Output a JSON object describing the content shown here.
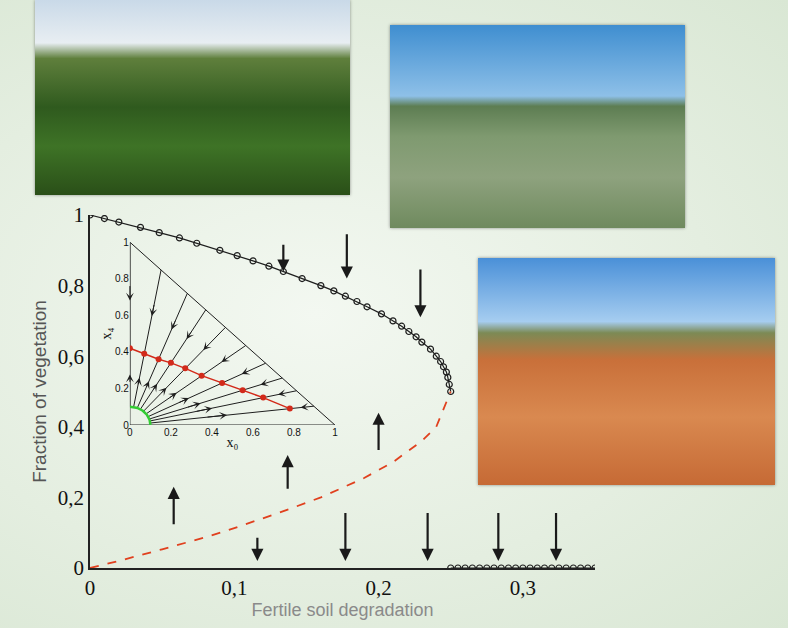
{
  "chart_data": [
    {
      "type": "line",
      "x_label": "Fertile soil degradation",
      "y_label": "Fraction of vegetation",
      "xlim": [
        0,
        0.35
      ],
      "ylim": [
        0,
        1
      ],
      "xticks": [
        0,
        {
          "value": 0.1,
          "label": "0,1"
        },
        {
          "value": 0.2,
          "label": "0,2"
        },
        {
          "value": 0.3,
          "label": "0,3"
        }
      ],
      "yticks": [
        0,
        {
          "value": 0.2,
          "label": "0,2"
        },
        {
          "value": 0.4,
          "label": "0,4"
        },
        {
          "value": 0.6,
          "label": "0,6"
        },
        {
          "value": 0.8,
          "label": "0,8"
        },
        1
      ],
      "grid": false,
      "series": [
        {
          "color": "#1e1e1e",
          "marker": "open-circle",
          "line_style": "solid",
          "x": [
            0,
            0.01,
            0.02,
            0.035,
            0.048,
            0.062,
            0.074,
            0.09,
            0.102,
            0.113,
            0.124,
            0.134,
            0.147,
            0.16,
            0.169,
            0.177,
            0.185,
            0.192,
            0.202,
            0.21,
            0.216,
            0.221,
            0.226,
            0.23,
            0.236,
            0.24,
            0.243,
            0.245,
            0.247,
            0.248,
            0.249,
            0.25
          ],
          "values": [
            1,
            0.99,
            0.98,
            0.965,
            0.95,
            0.935,
            0.92,
            0.9,
            0.885,
            0.87,
            0.855,
            0.84,
            0.82,
            0.8,
            0.785,
            0.77,
            0.755,
            0.74,
            0.72,
            0.7,
            0.685,
            0.67,
            0.655,
            0.64,
            0.62,
            0.6,
            0.585,
            0.57,
            0.555,
            0.54,
            0.52,
            0.5
          ]
        },
        {
          "color": "#e0401e",
          "marker": "none",
          "line_style": "dashed",
          "x": [
            0,
            0.02,
            0.05,
            0.08,
            0.1,
            0.13,
            0.16,
            0.19,
            0.21,
            0.23,
            0.24,
            0.25
          ],
          "values": [
            0,
            0.02,
            0.053,
            0.087,
            0.113,
            0.155,
            0.2,
            0.255,
            0.3,
            0.36,
            0.4,
            0.5
          ]
        },
        {
          "color": "#1e1e1e",
          "marker": "open-circle",
          "line_style": "solid",
          "x": [
            0.25,
            0.255,
            0.26,
            0.265,
            0.27,
            0.275,
            0.28,
            0.285,
            0.29,
            0.295,
            0.3,
            0.305,
            0.31,
            0.315,
            0.32,
            0.325,
            0.33,
            0.335,
            0.34,
            0.345,
            0.35
          ],
          "values": [
            0,
            0,
            0,
            0,
            0,
            0,
            0,
            0,
            0,
            0,
            0,
            0,
            0,
            0,
            0,
            0,
            0,
            0,
            0,
            0,
            0
          ]
        }
      ],
      "arrows": [
        {
          "x": 0.134,
          "y": [
            0.92,
            0.84
          ]
        },
        {
          "x": 0.178,
          "y": [
            0.95,
            0.82
          ]
        },
        {
          "x": 0.229,
          "y": [
            0.85,
            0.71
          ]
        },
        {
          "x": 0.2,
          "y": [
            0.33,
            0.44
          ]
        },
        {
          "x": 0.137,
          "y": [
            0.22,
            0.32
          ]
        },
        {
          "x": 0.058,
          "y": [
            0.12,
            0.23
          ]
        },
        {
          "x": 0.116,
          "y": [
            0.09,
            0.02
          ]
        },
        {
          "x": 0.177,
          "y": [
            0.16,
            0.02
          ]
        },
        {
          "x": 0.234,
          "y": [
            0.16,
            0.02
          ]
        },
        {
          "x": 0.283,
          "y": [
            0.16,
            0.02
          ]
        },
        {
          "x": 0.323,
          "y": [
            0.16,
            0.02
          ]
        }
      ]
    },
    {
      "type": "line",
      "x_label": "x₀",
      "y_label": "x₄",
      "xlim": [
        0,
        1
      ],
      "ylim": [
        0,
        1
      ],
      "xticks": [
        0,
        0.2,
        0.4,
        0.6,
        0.8,
        1
      ],
      "yticks": [
        0,
        0.2,
        0.4,
        0.6,
        0.8,
        1
      ],
      "grid": false,
      "color": "#1e1e1e",
      "trajectories": [
        {
          "x": [
            0,
            0
          ],
          "y": [
            0.1,
            1
          ]
        },
        {
          "x": [
            0.018,
            0.152
          ],
          "y": [
            0.098,
            0.848
          ]
        },
        {
          "x": [
            0.036,
            0.28
          ],
          "y": [
            0.093,
            0.72
          ]
        },
        {
          "x": [
            0.051,
            0.37
          ],
          "y": [
            0.086,
            0.63
          ]
        },
        {
          "x": [
            0.066,
            0.466
          ],
          "y": [
            0.075,
            0.534
          ]
        },
        {
          "x": [
            0.079,
            0.565
          ],
          "y": [
            0.061,
            0.435
          ]
        },
        {
          "x": [
            0.089,
            0.662
          ],
          "y": [
            0.046,
            0.338
          ]
        },
        {
          "x": [
            0.095,
            0.743
          ],
          "y": [
            0.033,
            0.257
          ]
        },
        {
          "x": [
            0.097,
            0.8125
          ],
          "y": [
            0.022,
            0.1875
          ]
        },
        {
          "x": [
            0.099,
            0.897
          ],
          "y": [
            0.011,
            0.103
          ]
        }
      ],
      "points": {
        "color": "#d22a1a",
        "x": [
          0,
          0.07,
          0.14,
          0.2,
          0.27,
          0.35,
          0.45,
          0.55,
          0.65,
          0.78
        ],
        "y": [
          0.42,
          0.39,
          0.36,
          0.34,
          0.31,
          0.27,
          0.23,
          0.19,
          0.15,
          0.09
        ]
      },
      "arc_radius": 0.1,
      "arc_color": "#33cc33"
    }
  ]
}
